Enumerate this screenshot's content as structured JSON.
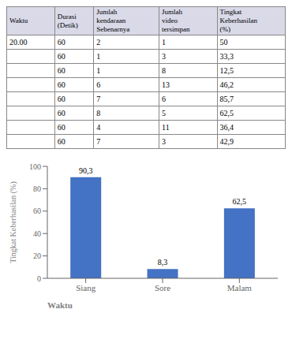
{
  "table": {
    "columns": [
      "Waktu",
      "Durasi\n(Detik)",
      "Jumlah\nkendaraan\nSebenarnya",
      "Jumlah\nvideo\ntersimpan",
      "Tingkat\nKeberhasilan\n(%)"
    ],
    "rows": [
      [
        "20.00",
        "60",
        "2",
        "1",
        "50"
      ],
      [
        null,
        "60",
        "1",
        "3",
        "33,3"
      ],
      [
        null,
        "60",
        "1",
        "8",
        "12,5"
      ],
      [
        null,
        "60",
        "6",
        "13",
        "46,2"
      ],
      [
        null,
        "60",
        "7",
        "6",
        "85,7"
      ],
      [
        null,
        "60",
        "8",
        "5",
        "62,5"
      ],
      [
        null,
        "60",
        "4",
        "11",
        "36,4"
      ],
      [
        null,
        "60",
        "7",
        "3",
        "42,9"
      ]
    ]
  },
  "chart_data": {
    "type": "bar",
    "categories": [
      "Siang",
      "Sore",
      "Malam"
    ],
    "values": [
      90.3,
      8.3,
      62.5
    ],
    "value_labels": [
      "90,3",
      "8,3",
      "62,5"
    ],
    "data_labels": true,
    "color": "#4472C4",
    "xlabel": "Waktu",
    "ylabel": "Tingkat Keberhasilan (%)",
    "ylim": [
      0,
      100
    ],
    "yticks": [
      0,
      20,
      40,
      60,
      80,
      100
    ],
    "grid": false
  }
}
